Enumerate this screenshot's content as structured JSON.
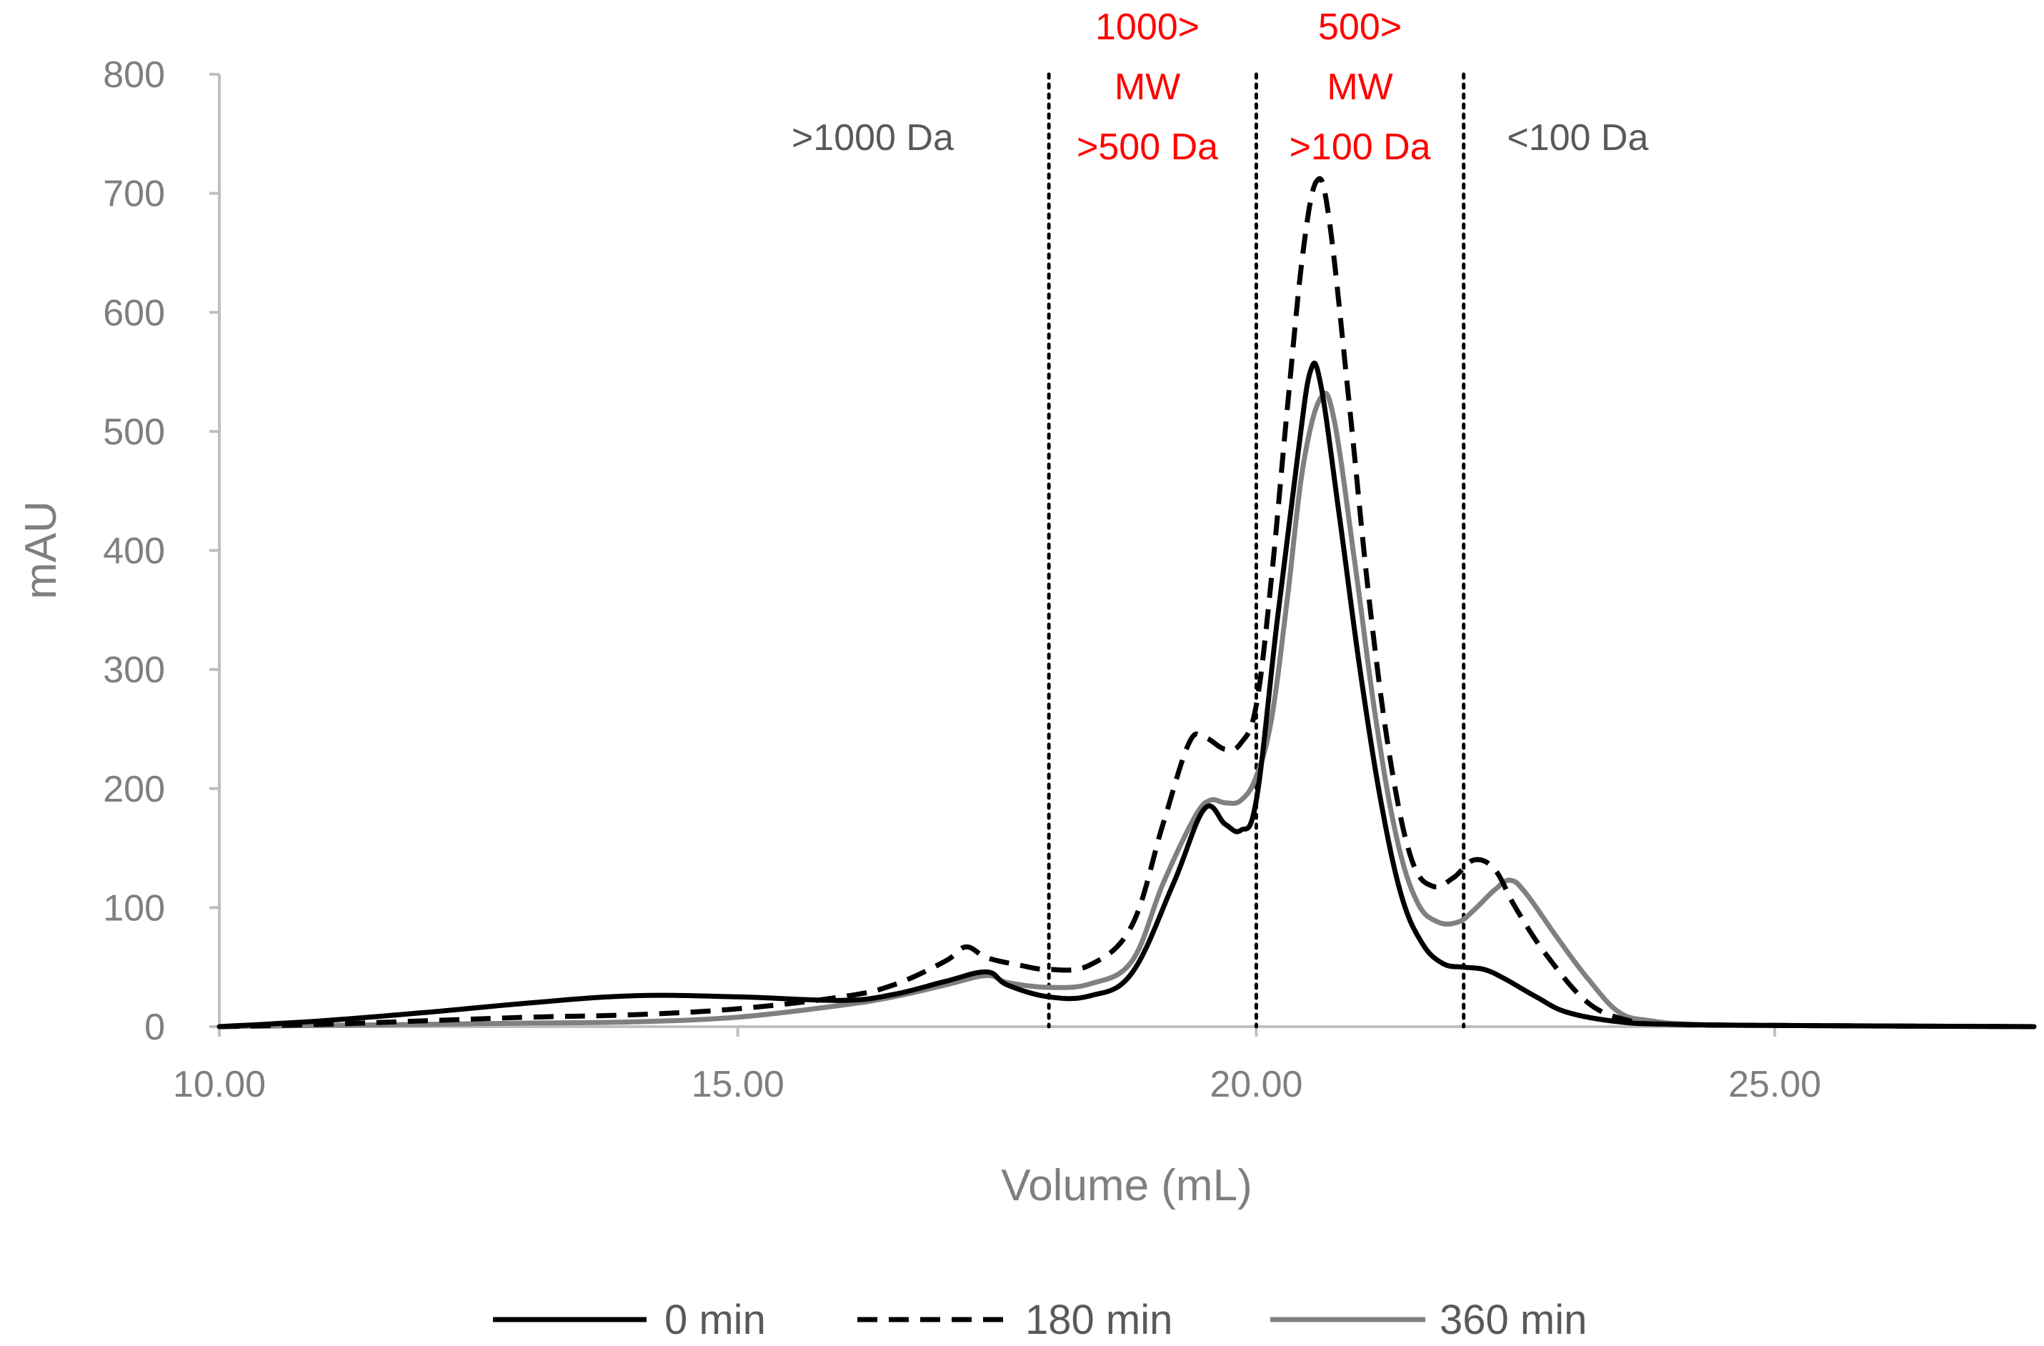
{
  "chart_data": {
    "type": "line",
    "title": "",
    "xlabel": "Volume (mL)",
    "ylabel": "mAU",
    "xlim": [
      10,
      27.5
    ],
    "ylim": [
      0,
      800
    ],
    "x_ticks": [
      10,
      15,
      20,
      25
    ],
    "x_tick_labels": [
      "10.00",
      "15.00",
      "20.00",
      "25.00"
    ],
    "y_ticks": [
      0,
      100,
      200,
      300,
      400,
      500,
      600,
      700,
      800
    ],
    "y_tick_labels": [
      "0",
      "100",
      "200",
      "300",
      "400",
      "500",
      "600",
      "700",
      "800"
    ],
    "grid": false,
    "legend_position": "bottom",
    "colors": {
      "axis": "#bfbfbf",
      "text": "#7f7f7f",
      "highlight": "#ff0000",
      "series_0": "#000000",
      "series_180": "#000000",
      "series_360": "#808080"
    },
    "cutoffs": [
      18,
      20,
      22
    ],
    "region_labels": [
      {
        "lines": [
          ">1000 Da"
        ],
        "x": 16.3,
        "color": "#595959"
      },
      {
        "lines": [
          "1000>",
          "MW",
          ">500 Da"
        ],
        "x": 18.95,
        "color": "#ff0000"
      },
      {
        "lines": [
          "500>",
          "MW",
          ">100 Da"
        ],
        "x": 21.0,
        "color": "#ff0000"
      },
      {
        "lines": [
          "<100 Da"
        ],
        "x": 23.1,
        "color": "#595959"
      }
    ],
    "series": [
      {
        "name": "0 min",
        "style": "solid",
        "color": "#000000",
        "points": [
          [
            10,
            0
          ],
          [
            11,
            5
          ],
          [
            12,
            12
          ],
          [
            13,
            20
          ],
          [
            14,
            26
          ],
          [
            15,
            25
          ],
          [
            16,
            22
          ],
          [
            16.5,
            27
          ],
          [
            17,
            38
          ],
          [
            17.4,
            46
          ],
          [
            17.6,
            35
          ],
          [
            18,
            25
          ],
          [
            18.4,
            26
          ],
          [
            18.8,
            45
          ],
          [
            19.2,
            120
          ],
          [
            19.5,
            183
          ],
          [
            19.7,
            170
          ],
          [
            19.85,
            165
          ],
          [
            20,
            190
          ],
          [
            20.2,
            340
          ],
          [
            20.4,
            480
          ],
          [
            20.52,
            550
          ],
          [
            20.62,
            540
          ],
          [
            20.8,
            430
          ],
          [
            21,
            300
          ],
          [
            21.2,
            190
          ],
          [
            21.4,
            110
          ],
          [
            21.6,
            70
          ],
          [
            21.8,
            53
          ],
          [
            22,
            50
          ],
          [
            22.2,
            48
          ],
          [
            22.4,
            40
          ],
          [
            22.7,
            25
          ],
          [
            23,
            12
          ],
          [
            23.5,
            4
          ],
          [
            24,
            2
          ],
          [
            25,
            1
          ],
          [
            27.5,
            0
          ]
        ]
      },
      {
        "name": "180 min",
        "style": "dashed",
        "color": "#000000",
        "points": [
          [
            10,
            0
          ],
          [
            11,
            2
          ],
          [
            12,
            5
          ],
          [
            13,
            8
          ],
          [
            14,
            10
          ],
          [
            15,
            15
          ],
          [
            16,
            25
          ],
          [
            16.5,
            35
          ],
          [
            17,
            55
          ],
          [
            17.2,
            67
          ],
          [
            17.4,
            58
          ],
          [
            17.7,
            52
          ],
          [
            18,
            48
          ],
          [
            18.4,
            52
          ],
          [
            18.8,
            85
          ],
          [
            19.1,
            170
          ],
          [
            19.35,
            238
          ],
          [
            19.5,
            243
          ],
          [
            19.7,
            233
          ],
          [
            19.85,
            238
          ],
          [
            20,
            270
          ],
          [
            20.15,
            380
          ],
          [
            20.3,
            520
          ],
          [
            20.45,
            650
          ],
          [
            20.58,
            710
          ],
          [
            20.7,
            680
          ],
          [
            20.9,
            520
          ],
          [
            21.1,
            350
          ],
          [
            21.3,
            220
          ],
          [
            21.5,
            140
          ],
          [
            21.7,
            118
          ],
          [
            21.9,
            125
          ],
          [
            22.1,
            140
          ],
          [
            22.3,
            132
          ],
          [
            22.5,
            100
          ],
          [
            22.8,
            60
          ],
          [
            23.2,
            20
          ],
          [
            23.6,
            5
          ],
          [
            24,
            2
          ],
          [
            25,
            1
          ],
          [
            27.5,
            0
          ]
        ]
      },
      {
        "name": "360 min",
        "style": "solid",
        "color": "#808080",
        "points": [
          [
            10,
            0
          ],
          [
            11,
            1
          ],
          [
            12,
            2
          ],
          [
            13,
            3
          ],
          [
            14,
            4
          ],
          [
            15,
            8
          ],
          [
            16,
            18
          ],
          [
            16.5,
            25
          ],
          [
            17,
            35
          ],
          [
            17.4,
            43
          ],
          [
            17.6,
            37
          ],
          [
            18,
            33
          ],
          [
            18.4,
            36
          ],
          [
            18.8,
            55
          ],
          [
            19.1,
            120
          ],
          [
            19.4,
            175
          ],
          [
            19.55,
            190
          ],
          [
            19.7,
            188
          ],
          [
            19.85,
            190
          ],
          [
            20,
            210
          ],
          [
            20.15,
            260
          ],
          [
            20.3,
            360
          ],
          [
            20.45,
            470
          ],
          [
            20.62,
            528
          ],
          [
            20.75,
            510
          ],
          [
            20.95,
            390
          ],
          [
            21.15,
            260
          ],
          [
            21.35,
            160
          ],
          [
            21.55,
            105
          ],
          [
            21.75,
            88
          ],
          [
            21.95,
            88
          ],
          [
            22.1,
            98
          ],
          [
            22.3,
            115
          ],
          [
            22.45,
            123
          ],
          [
            22.6,
            112
          ],
          [
            22.9,
            75
          ],
          [
            23.2,
            40
          ],
          [
            23.5,
            12
          ],
          [
            23.8,
            5
          ],
          [
            24.2,
            2
          ],
          [
            25,
            1
          ],
          [
            27.5,
            0
          ]
        ]
      }
    ]
  }
}
